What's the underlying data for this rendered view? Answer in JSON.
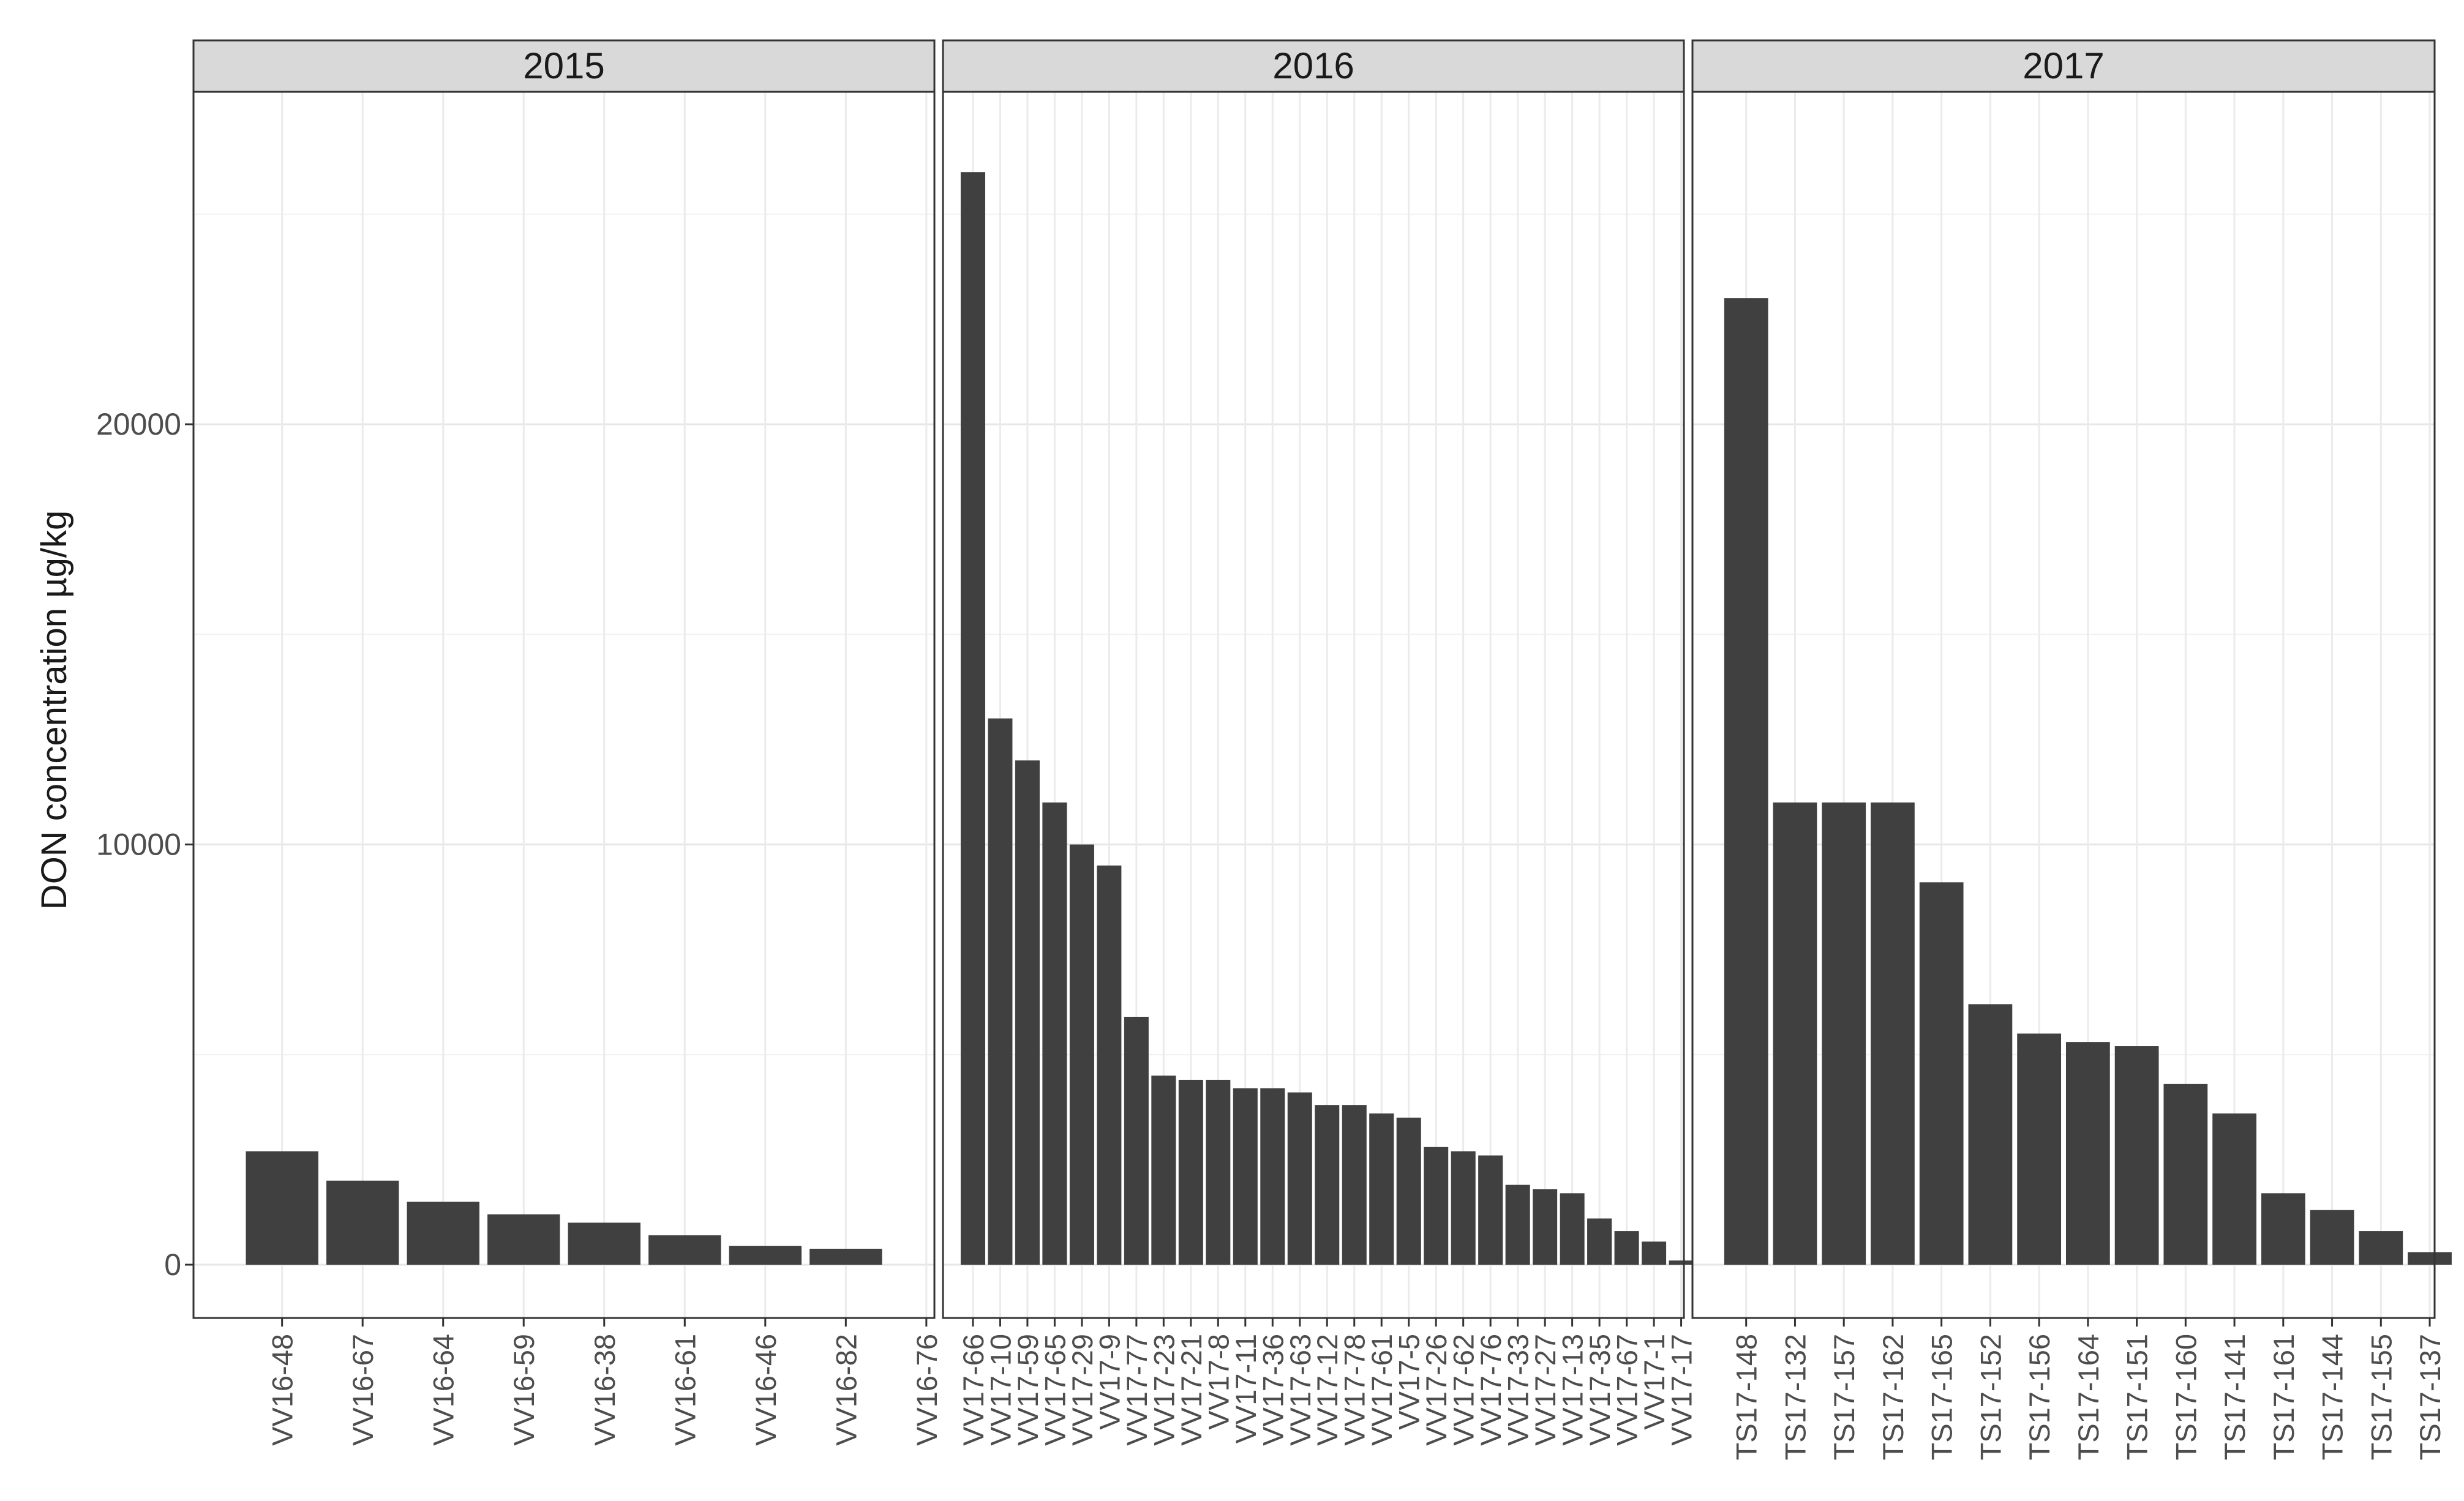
{
  "chart_data": {
    "type": "bar",
    "ylabel": "DON concentration µg/kg",
    "xlabel": "",
    "ylim": [
      0,
      26500
    ],
    "yticks": [
      0,
      10000,
      20000
    ],
    "grid": true,
    "bar_color": "#404040",
    "facets": [
      {
        "name": "2015",
        "categories": [
          "VV16-48",
          "VV16-67",
          "VV16-64",
          "VV16-59",
          "VV16-38",
          "VV16-61",
          "VV16-46",
          "VV16-82",
          "VV16-76"
        ],
        "values": [
          2700,
          2000,
          1500,
          1200,
          1000,
          700,
          450,
          380,
          0
        ]
      },
      {
        "name": "2016",
        "categories": [
          "VV17-66",
          "VV17-10",
          "VV17-59",
          "VV17-65",
          "VV17-29",
          "VV17-9",
          "VV17-77",
          "VV17-23",
          "VV17-21",
          "VV17-8",
          "VV17-11",
          "VV17-36",
          "VV17-63",
          "VV17-12",
          "VV17-78",
          "VV17-61",
          "VV17-5",
          "VV17-26",
          "VV17-62",
          "VV17-76",
          "VV17-33",
          "VV17-27",
          "VV17-13",
          "VV17-35",
          "VV17-67",
          "VV17-1",
          "VV17-17"
        ],
        "values": [
          26000,
          13000,
          12000,
          11000,
          10000,
          9500,
          5900,
          4500,
          4400,
          4400,
          4200,
          4200,
          4100,
          3800,
          3800,
          3600,
          3500,
          2800,
          2700,
          2600,
          1900,
          1800,
          1700,
          1100,
          800,
          550,
          100
        ]
      },
      {
        "name": "2017",
        "categories": [
          "TS17-148",
          "TS17-132",
          "TS17-157",
          "TS17-162",
          "TS17-165",
          "TS17-152",
          "TS17-156",
          "TS17-164",
          "TS17-151",
          "TS17-160",
          "TS17-141",
          "TS17-161",
          "TS17-144",
          "TS17-155",
          "TS17-137"
        ],
        "values": [
          23000,
          11000,
          11000,
          11000,
          9100,
          6200,
          5500,
          5300,
          5200,
          4300,
          3600,
          1700,
          1300,
          800,
          300
        ]
      }
    ]
  }
}
